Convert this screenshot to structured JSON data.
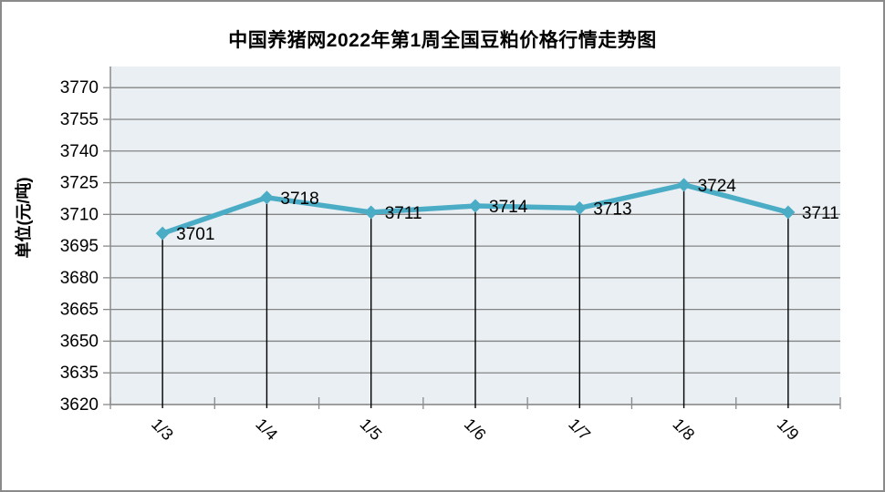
{
  "chart_data": {
    "type": "line",
    "title": "中国养猪网2022年第1周全国豆粕价格行情走势图",
    "ylabel": "单位(元/吨)",
    "xlabel": "",
    "categories": [
      "1/3",
      "1/4",
      "1/5",
      "1/6",
      "1/7",
      "1/8",
      "1/9"
    ],
    "values": [
      3701,
      3718,
      3711,
      3714,
      3713,
      3724,
      3711
    ],
    "data_labels": [
      "3701",
      "3718",
      "3711",
      "3714",
      "3713",
      "3724",
      "3711"
    ],
    "yticks": [
      3620,
      3635,
      3650,
      3665,
      3680,
      3695,
      3710,
      3725,
      3740,
      3755,
      3770
    ],
    "ylim": [
      3620,
      3780
    ],
    "grid": "horizontal",
    "legend": "none",
    "colors": {
      "line": "#4BACC6",
      "marker": "#4BACC6",
      "plot_background": "#E9EFF2",
      "gridline": "#848484",
      "axis": "#8a8a8a",
      "drop_line": "#000000",
      "text": "#000000"
    }
  }
}
